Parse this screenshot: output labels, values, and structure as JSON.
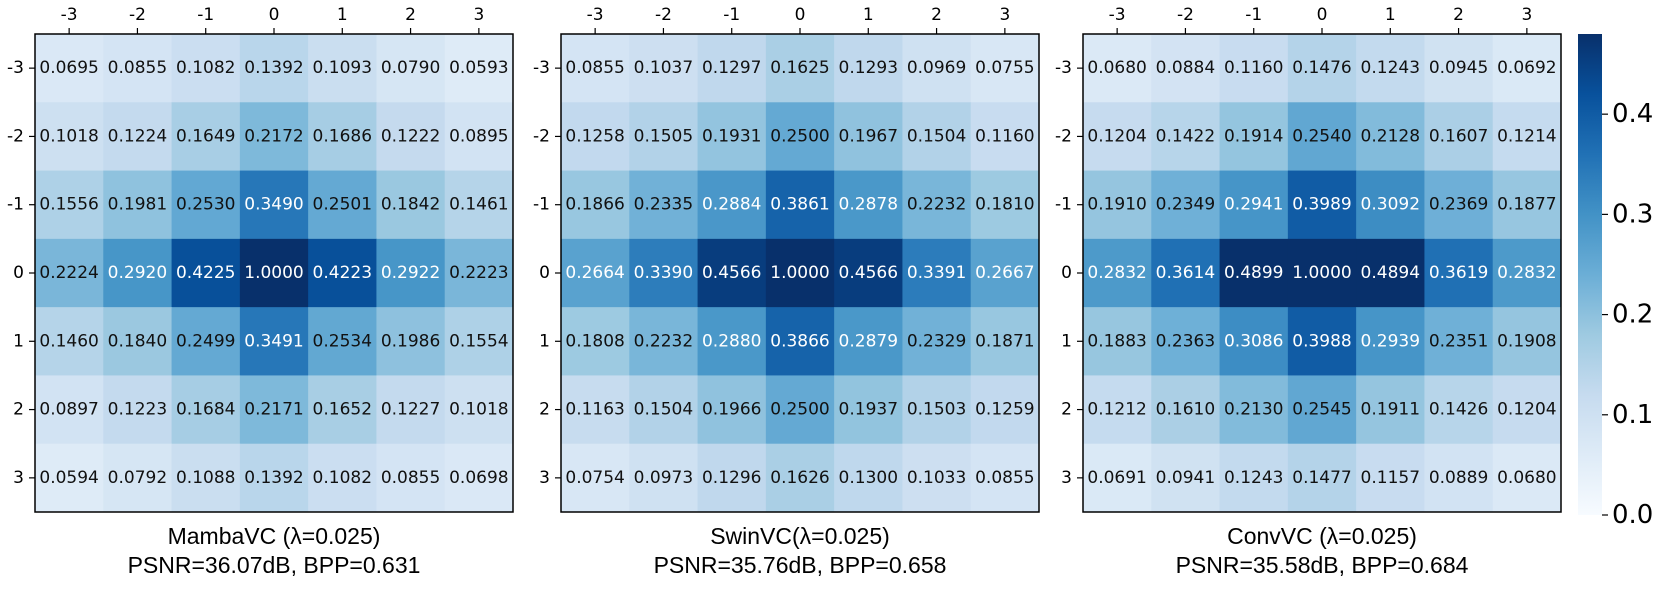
{
  "chart_data": [
    {
      "type": "heatmap",
      "title": "MambaVC (λ=0.025)",
      "subtitle": "PSNR=36.07dB, BPP=0.631",
      "x_ticks": [
        "-3",
        "-2",
        "-1",
        "0",
        "1",
        "2",
        "3"
      ],
      "y_ticks": [
        "-3",
        "-2",
        "-1",
        "0",
        "1",
        "2",
        "3"
      ],
      "values": [
        [
          "0.0695",
          "0.0855",
          "0.1082",
          "0.1392",
          "0.1093",
          "0.0790",
          "0.0593"
        ],
        [
          "0.1018",
          "0.1224",
          "0.1649",
          "0.2172",
          "0.1686",
          "0.1222",
          "0.0895"
        ],
        [
          "0.1556",
          "0.1981",
          "0.2530",
          "0.3490",
          "0.2501",
          "0.1842",
          "0.1461"
        ],
        [
          "0.2224",
          "0.2920",
          "0.4225",
          "1.0000",
          "0.4223",
          "0.2922",
          "0.2223"
        ],
        [
          "0.1460",
          "0.1840",
          "0.2499",
          "0.3491",
          "0.2534",
          "0.1986",
          "0.1554"
        ],
        [
          "0.0897",
          "0.1223",
          "0.1684",
          "0.2171",
          "0.1652",
          "0.1227",
          "0.1018"
        ],
        [
          "0.0594",
          "0.0792",
          "0.1088",
          "0.1392",
          "0.1082",
          "0.0855",
          "0.0698"
        ]
      ]
    },
    {
      "type": "heatmap",
      "title": "SwinVC(λ=0.025)",
      "subtitle": "PSNR=35.76dB, BPP=0.658",
      "x_ticks": [
        "-3",
        "-2",
        "-1",
        "0",
        "1",
        "2",
        "3"
      ],
      "y_ticks": [
        "-3",
        "-2",
        "-1",
        "0",
        "1",
        "2",
        "3"
      ],
      "values": [
        [
          "0.0855",
          "0.1037",
          "0.1297",
          "0.1625",
          "0.1293",
          "0.0969",
          "0.0755"
        ],
        [
          "0.1258",
          "0.1505",
          "0.1931",
          "0.2500",
          "0.1967",
          "0.1504",
          "0.1160"
        ],
        [
          "0.1866",
          "0.2335",
          "0.2884",
          "0.3861",
          "0.2878",
          "0.2232",
          "0.1810"
        ],
        [
          "0.2664",
          "0.3390",
          "0.4566",
          "1.0000",
          "0.4566",
          "0.3391",
          "0.2667"
        ],
        [
          "0.1808",
          "0.2232",
          "0.2880",
          "0.3866",
          "0.2879",
          "0.2329",
          "0.1871"
        ],
        [
          "0.1163",
          "0.1504",
          "0.1966",
          "0.2500",
          "0.1937",
          "0.1503",
          "0.1259"
        ],
        [
          "0.0754",
          "0.0973",
          "0.1296",
          "0.1626",
          "0.1300",
          "0.1033",
          "0.0855"
        ]
      ]
    },
    {
      "type": "heatmap",
      "title": "ConvVC (λ=0.025)",
      "subtitle": "PSNR=35.58dB, BPP=0.684",
      "x_ticks": [
        "-3",
        "-2",
        "-1",
        "0",
        "1",
        "2",
        "3"
      ],
      "y_ticks": [
        "-3",
        "-2",
        "-1",
        "0",
        "1",
        "2",
        "3"
      ],
      "values": [
        [
          "0.0680",
          "0.0884",
          "0.1160",
          "0.1476",
          "0.1243",
          "0.0945",
          "0.0692"
        ],
        [
          "0.1204",
          "0.1422",
          "0.1914",
          "0.2540",
          "0.2128",
          "0.1607",
          "0.1214"
        ],
        [
          "0.1910",
          "0.2349",
          "0.2941",
          "0.3989",
          "0.3092",
          "0.2369",
          "0.1877"
        ],
        [
          "0.2832",
          "0.3614",
          "0.4899",
          "1.0000",
          "0.4894",
          "0.3619",
          "0.2832"
        ],
        [
          "0.1883",
          "0.2363",
          "0.3086",
          "0.3988",
          "0.2939",
          "0.2351",
          "0.1908"
        ],
        [
          "0.1212",
          "0.1610",
          "0.2130",
          "0.2545",
          "0.1911",
          "0.1426",
          "0.1204"
        ],
        [
          "0.0691",
          "0.0941",
          "0.1243",
          "0.1477",
          "0.1157",
          "0.0889",
          "0.0680"
        ]
      ]
    }
  ],
  "colorbar": {
    "range": [
      0.0,
      0.48
    ],
    "ticks": [
      "0.0",
      "0.1",
      "0.2",
      "0.3",
      "0.4"
    ],
    "tick_values": [
      0.0,
      0.1,
      0.2,
      0.3,
      0.4
    ],
    "colors": [
      "#f7fbff",
      "#deebf7",
      "#c6dbef",
      "#9ecae1",
      "#6baed6",
      "#4292c6",
      "#2171b5",
      "#08519c",
      "#08306b"
    ]
  }
}
